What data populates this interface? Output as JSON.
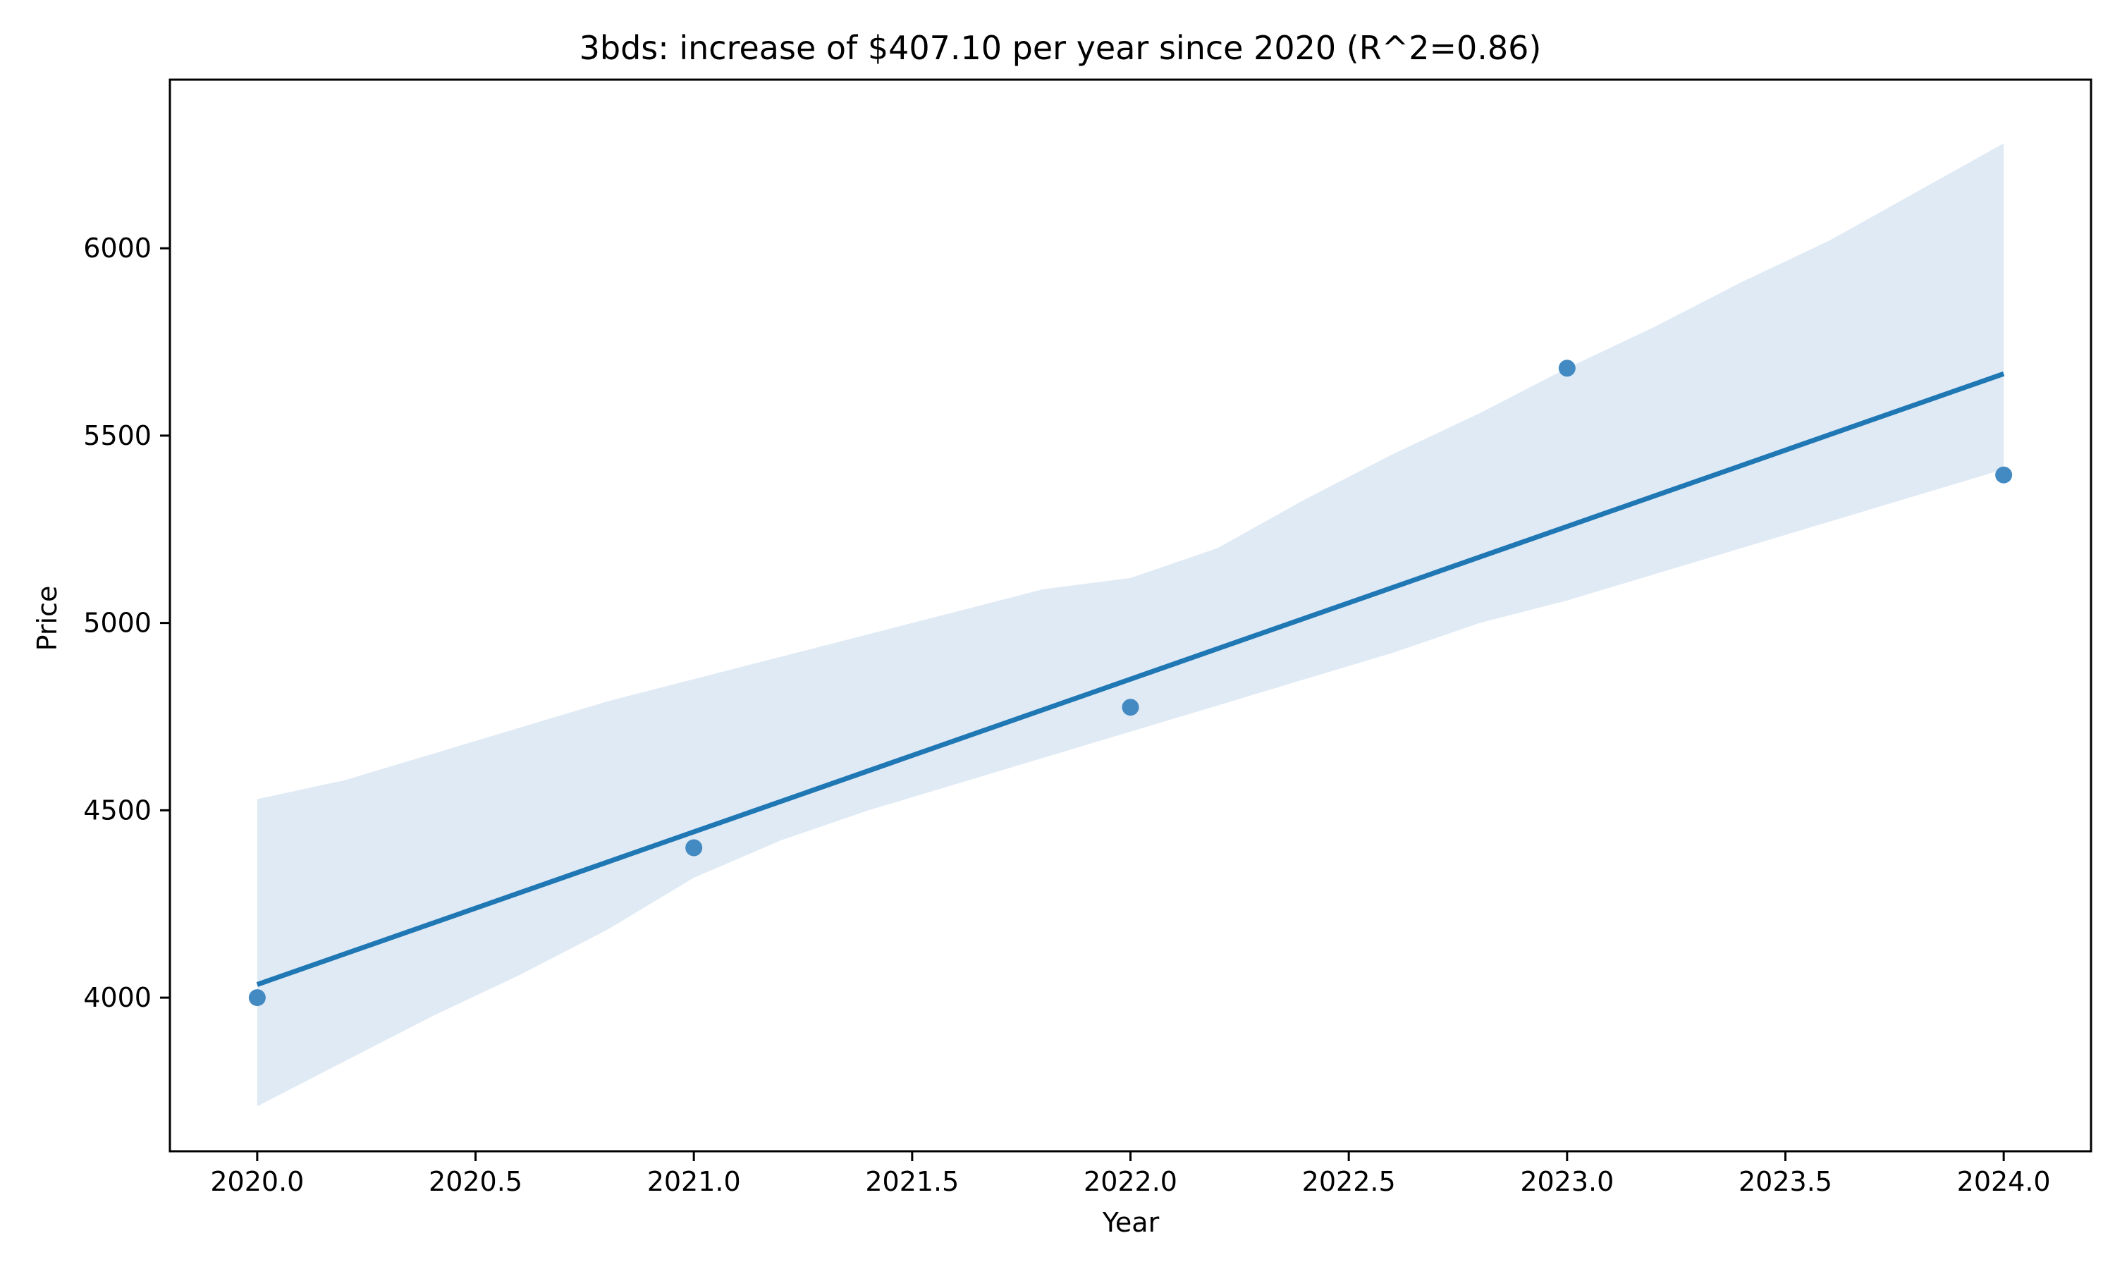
{
  "chart_data": {
    "type": "scatter",
    "title": "3bds: increase of $407.10 per year since 2020 (R^2=0.86)",
    "xlabel": "Year",
    "ylabel": "Price",
    "xlim": [
      2019.8,
      2024.2
    ],
    "ylim": [
      3590,
      6450
    ],
    "x_ticks": [
      "2020.0",
      "2020.5",
      "2021.0",
      "2021.5",
      "2022.0",
      "2022.5",
      "2023.0",
      "2023.5",
      "2024.0"
    ],
    "y_ticks": [
      "4000",
      "4500",
      "5000",
      "5500",
      "6000"
    ],
    "grid": false,
    "points": {
      "x": [
        2020,
        2021,
        2022,
        2023,
        2024
      ],
      "y": [
        4000,
        4400,
        4775,
        5680,
        5395
      ]
    },
    "regression": {
      "x": [
        2020,
        2024
      ],
      "y": [
        4035,
        5665
      ]
    },
    "confidence_band": {
      "x": [
        2020,
        2020.2,
        2020.4,
        2020.6,
        2020.8,
        2021,
        2021.2,
        2021.4,
        2021.6,
        2021.8,
        2022,
        2022.2,
        2022.4,
        2022.6,
        2022.8,
        2023,
        2023.2,
        2023.4,
        2023.6,
        2023.8,
        2024
      ],
      "upper": [
        4530,
        4580,
        4650,
        4720,
        4790,
        4850,
        4910,
        4970,
        5030,
        5090,
        5120,
        5200,
        5330,
        5450,
        5560,
        5680,
        5790,
        5910,
        6020,
        6150,
        6280
      ],
      "lower": [
        3710,
        3830,
        3950,
        4060,
        4180,
        4320,
        4420,
        4500,
        4570,
        4640,
        4710,
        4780,
        4850,
        4920,
        5000,
        5060,
        5130,
        5200,
        5270,
        5340,
        5410
      ]
    },
    "colors": {
      "point": "#3a84bf",
      "line": "#1f77b4",
      "band": "#dfeaf5"
    }
  }
}
